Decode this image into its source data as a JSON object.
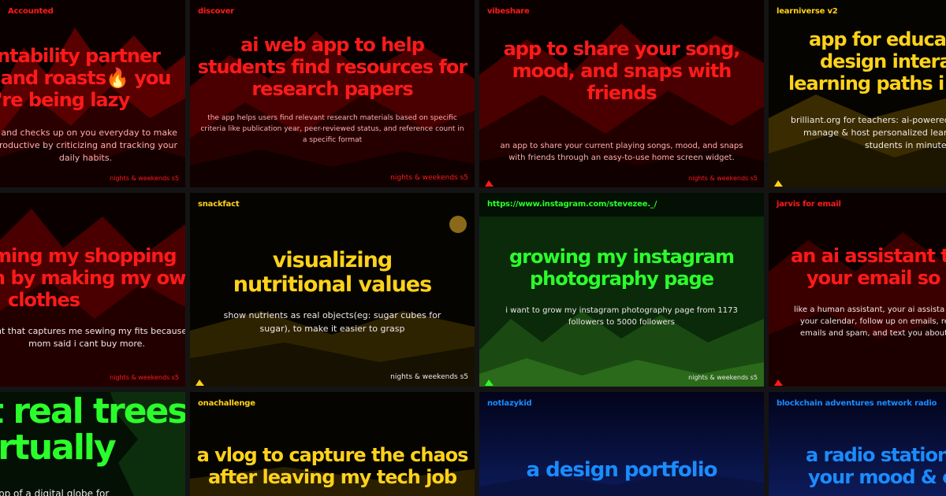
{
  "colors": {
    "red": "#ff1a1a",
    "yellow": "#ffd21a",
    "green": "#2bff2b",
    "blue": "#1a8cff",
    "background": "#141414"
  },
  "footer_label": "nights & weekends s5",
  "cards": [
    {
      "tag": "Accounted",
      "title_lines": [
        "untability partner",
        "s and roasts",
        "u're being lazy"
      ],
      "title_emoji_after_line2": "🔥",
      "title_line2_suffix": " you",
      "desc_lines": [
        "s and checks up on you everyday to make",
        "productive by criticizing and tracking your",
        "daily habits."
      ],
      "footer": "nights & weekends s5"
    },
    {
      "tag": "discover",
      "title_lines": [
        "ai web app to help",
        "students find resources for",
        "research papers"
      ],
      "desc_lines": [
        "the app helps users find relevant research materials based on specific",
        "criteria like publication year, peer-reviewed status, and reference count in",
        "a specific format"
      ],
      "footer": "nights & weekends s5"
    },
    {
      "tag": "vibeshare",
      "title_lines": [
        "app to share your song,",
        "mood, and snaps with",
        "friends"
      ],
      "desc_lines": [
        "an app to share your current playing songs, mood, and snaps",
        "with friends through an easy-to-use home screen widget."
      ],
      "footer": "nights & weekends s5"
    },
    {
      "tag": "learniverse v2",
      "title_lines": [
        "app for educa",
        "design intera",
        "learning paths i"
      ],
      "desc_lines": [
        "brilliant.org for teachers: ai-powered",
        "manage & host personalized learnin",
        "students in minute"
      ]
    },
    {
      "tag": "",
      "title_lines": [
        "ming my shopping",
        "n by making my own",
        "clothes"
      ],
      "desc_lines": [
        "nt that captures me sewing my fits because",
        "mom said i cant buy more."
      ],
      "footer": "nights & weekends s5"
    },
    {
      "tag": "snackfact",
      "title_lines": [
        "visualizing",
        "nutritional values"
      ],
      "desc_lines": [
        "show nutrients as real objects(eg: sugar cubes for",
        "sugar), to make it easier to grasp"
      ],
      "footer": "nights & weekends s5"
    },
    {
      "tag": "https://www.instagram.com/stevezee._/",
      "title_lines": [
        "growing my instagram",
        "photography page"
      ],
      "desc_lines": [
        "i want to grow my instagram photography page from 1173",
        "followers to 5000 followers"
      ],
      "footer": "nights & weekends s5"
    },
    {
      "tag": "jarvis for email",
      "title_lines": [
        "an ai assistant tha",
        "your email so yo"
      ],
      "desc_lines": [
        "like a human assistant, your ai assista",
        "your calendar, follow up on emails, re",
        "emails and spam, and text you about a"
      ]
    },
    {
      "tag": "",
      "title_lines": [
        "t real trees",
        "irtually"
      ],
      "desc_lines": [
        "pp of a digital globe for"
      ]
    },
    {
      "tag": "onachallenge",
      "title_lines": [
        "a vlog to capture the chaos",
        "after leaving my tech job"
      ]
    },
    {
      "tag": "notlazykid",
      "title_lines": [
        "a design portfolio"
      ]
    },
    {
      "tag": "blockchain adventures network radio",
      "title_lines": [
        "a radio station t",
        "your mood & en"
      ]
    }
  ]
}
